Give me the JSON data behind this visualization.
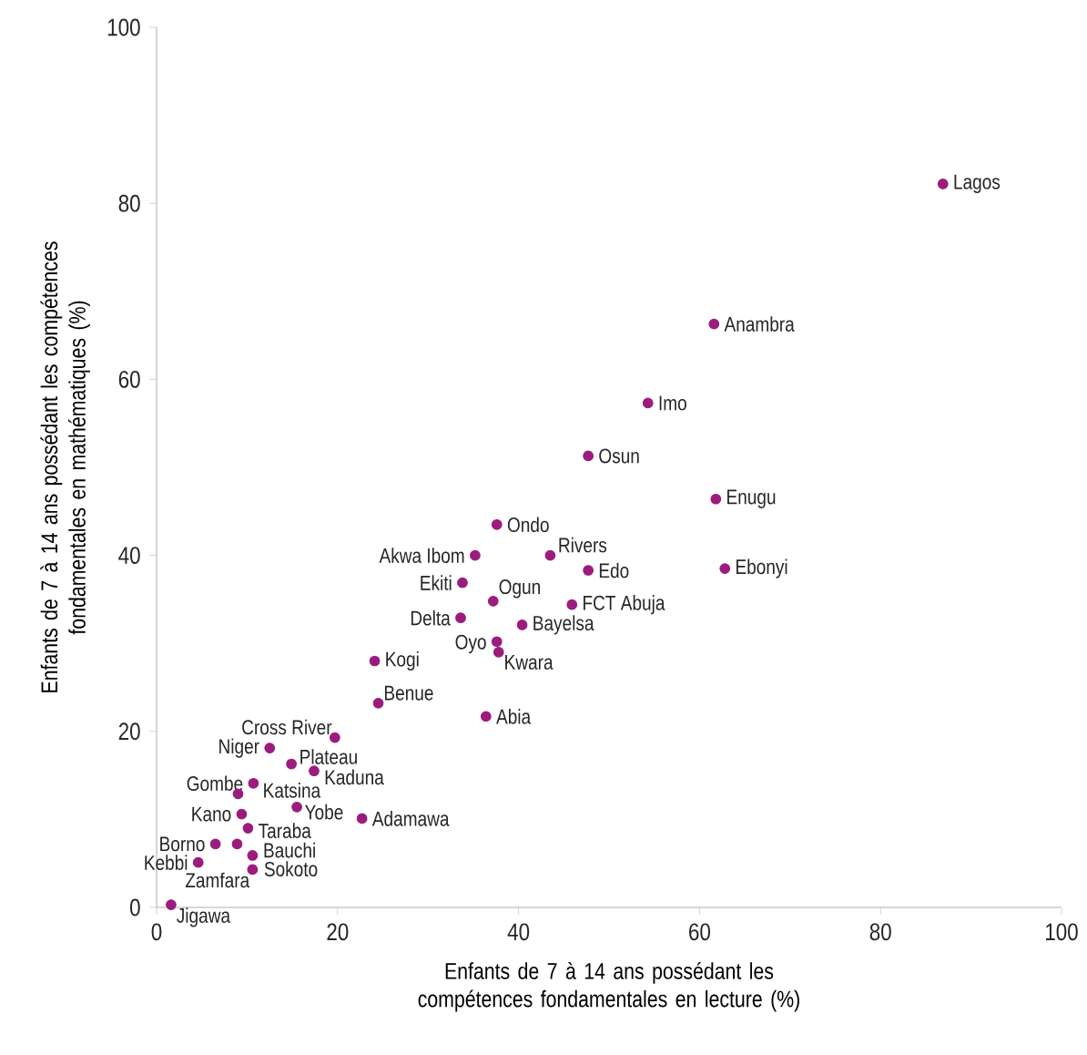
{
  "chart_data": {
    "type": "scatter",
    "xlabel": "Enfants de 7 à 14 ans possédant les compétences fondamentales en lecture (%)",
    "ylabel": "Enfants de 7 à 14 ans possédant les compétences fondamentales en mathématiques (%)",
    "xlim": [
      0,
      100
    ],
    "ylim": [
      0,
      100
    ],
    "xticks": [
      0,
      20,
      40,
      60,
      80,
      100
    ],
    "yticks": [
      0,
      20,
      40,
      60,
      80,
      100
    ],
    "grid": false,
    "series": [
      {
        "color": "#9b1c7e",
        "x": [
          86.9,
          61.6,
          54.3,
          47.7,
          61.8,
          62.8,
          37.6,
          35.2,
          43.5,
          47.7,
          33.8,
          37.2,
          45.9,
          33.6,
          40.4,
          37.6,
          37.8,
          24.1,
          24.5,
          36.4,
          19.7,
          12.5,
          14.9,
          17.4,
          10.7,
          9.0,
          15.5,
          22.7,
          9.4,
          10.1,
          6.5,
          8.9,
          10.6,
          10.6,
          4.6,
          1.6
        ],
        "values": [
          82.2,
          66.3,
          57.3,
          51.3,
          46.4,
          38.5,
          43.5,
          40.0,
          40.0,
          38.3,
          36.9,
          34.8,
          34.4,
          32.9,
          32.1,
          30.2,
          29.0,
          28.0,
          23.2,
          21.7,
          19.3,
          18.1,
          16.3,
          15.5,
          14.1,
          12.9,
          11.4,
          10.1,
          10.6,
          9.0,
          7.2,
          7.2,
          5.9,
          4.3,
          5.1,
          0.3
        ]
      }
    ],
    "annotations": [
      {
        "text": "Lagos",
        "x": 86.9,
        "y": 82.2
      },
      {
        "text": "Anambra",
        "x": 61.6,
        "y": 66.3
      },
      {
        "text": "Imo",
        "x": 54.3,
        "y": 57.3
      },
      {
        "text": "Osun",
        "x": 47.7,
        "y": 51.3
      },
      {
        "text": "Enugu",
        "x": 61.8,
        "y": 46.4
      },
      {
        "text": "Ebonyi",
        "x": 62.8,
        "y": 38.5
      },
      {
        "text": "Ondo",
        "x": 37.6,
        "y": 43.5
      },
      {
        "text": "Akwa Ibom",
        "x": 35.2,
        "y": 40.0
      },
      {
        "text": "Rivers",
        "x": 43.5,
        "y": 40.0
      },
      {
        "text": "Edo",
        "x": 47.7,
        "y": 38.3
      },
      {
        "text": "Ekiti",
        "x": 33.8,
        "y": 36.9
      },
      {
        "text": "Ogun",
        "x": 37.2,
        "y": 34.8
      },
      {
        "text": "FCT Abuja",
        "x": 45.9,
        "y": 34.4
      },
      {
        "text": "Delta",
        "x": 33.6,
        "y": 32.9
      },
      {
        "text": "Bayelsa",
        "x": 40.4,
        "y": 32.1
      },
      {
        "text": "Oyo",
        "x": 37.6,
        "y": 30.2
      },
      {
        "text": "Kwara",
        "x": 37.8,
        "y": 29.0
      },
      {
        "text": "Kogi",
        "x": 24.1,
        "y": 28.0
      },
      {
        "text": "Benue",
        "x": 24.5,
        "y": 23.2
      },
      {
        "text": "Abia",
        "x": 36.4,
        "y": 21.7
      },
      {
        "text": "Cross River",
        "x": 19.7,
        "y": 19.3
      },
      {
        "text": "Niger",
        "x": 12.5,
        "y": 18.1
      },
      {
        "text": "Plateau",
        "x": 14.9,
        "y": 16.3
      },
      {
        "text": "Kaduna",
        "x": 17.4,
        "y": 15.5
      },
      {
        "text": "Gombe",
        "x": 10.7,
        "y": 14.1
      },
      {
        "text": "Katsina",
        "x": 9.0,
        "y": 12.9
      },
      {
        "text": "Yobe",
        "x": 15.5,
        "y": 11.4
      },
      {
        "text": "Adamawa",
        "x": 22.7,
        "y": 10.1
      },
      {
        "text": "Kano",
        "x": 9.4,
        "y": 10.6
      },
      {
        "text": "Taraba",
        "x": 10.1,
        "y": 9.0
      },
      {
        "text": "Borno",
        "x": 6.5,
        "y": 7.2
      },
      {
        "text": "Bauchi",
        "x": 8.9,
        "y": 7.2
      },
      {
        "text": "Sokoto",
        "x": 10.6,
        "y": 5.9
      },
      {
        "text": "Zamfara",
        "x": 10.6,
        "y": 4.3
      },
      {
        "text": "Kebbi",
        "x": 4.6,
        "y": 5.1
      },
      {
        "text": "Jigawa",
        "x": 1.6,
        "y": 0.3
      }
    ]
  }
}
